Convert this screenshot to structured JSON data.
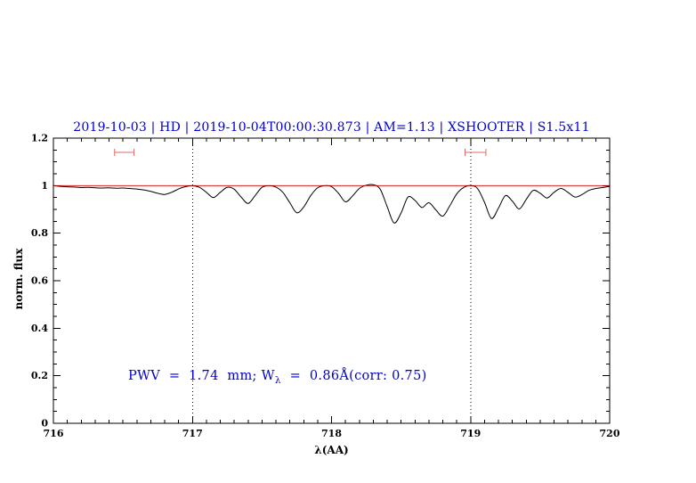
{
  "chart_data": {
    "type": "line",
    "title": "2019-10-03 | HD | 2019-10-04T00:00:30.873 | AM=1.13 | XSHOOTER | S1.5x11",
    "xlabel": "λ(AA)",
    "ylabel": "norm. flux",
    "xlim": [
      716,
      720
    ],
    "ylim": [
      0,
      1.2
    ],
    "xticks": [
      716,
      717,
      718,
      719,
      720
    ],
    "xtick_labels": [
      "716",
      "717",
      "718",
      "719",
      "720"
    ],
    "x_minor_step": 0.1,
    "yticks": [
      0,
      0.2,
      0.4,
      0.6,
      0.8,
      1,
      1.2
    ],
    "ytick_labels": [
      "0",
      "0.2",
      "0.4",
      "0.6",
      "0.8",
      "1",
      "1.2"
    ],
    "y_minor_step": 0.05,
    "grid": false,
    "reference_vlines": [
      717,
      719
    ],
    "continuum_level": 1.0,
    "range_markers": [
      {
        "x_start": 716.44,
        "x_end": 716.58,
        "y": 1.14
      },
      {
        "x_start": 718.96,
        "x_end": 719.11,
        "y": 1.14
      }
    ],
    "annotation": {
      "part1": "PWV  =  1.74  mm; W",
      "subscript": "λ",
      "part2": "  =  0.86Å(corr: 0.75)"
    },
    "series": [
      {
        "name": "observed-spectrum",
        "color": "#000000",
        "x": [
          716.0,
          716.05,
          716.1,
          716.15,
          716.2,
          716.25,
          716.3,
          716.35,
          716.4,
          716.45,
          716.5,
          716.55,
          716.6,
          716.65,
          716.7,
          716.75,
          716.8,
          716.85,
          716.9,
          716.95,
          717.0,
          717.05,
          717.1,
          717.15,
          717.2,
          717.25,
          717.3,
          717.35,
          717.4,
          717.45,
          717.5,
          717.55,
          717.6,
          717.65,
          717.7,
          717.75,
          717.8,
          717.85,
          717.9,
          717.95,
          718.0,
          718.05,
          718.1,
          718.15,
          718.2,
          718.25,
          718.3,
          718.35,
          718.4,
          718.45,
          718.5,
          718.55,
          718.6,
          718.65,
          718.7,
          718.75,
          718.8,
          718.85,
          718.9,
          718.95,
          719.0,
          719.05,
          719.1,
          719.15,
          719.2,
          719.25,
          719.3,
          719.35,
          719.4,
          719.45,
          719.5,
          719.55,
          719.6,
          719.65,
          719.7,
          719.75,
          719.8,
          719.85,
          719.9,
          719.95,
          720.0
        ],
        "y": [
          1.0,
          0.997,
          0.995,
          0.994,
          0.992,
          0.993,
          0.991,
          0.99,
          0.991,
          0.989,
          0.99,
          0.988,
          0.986,
          0.982,
          0.976,
          0.968,
          0.963,
          0.972,
          0.986,
          0.996,
          1.0,
          0.993,
          0.972,
          0.95,
          0.972,
          0.993,
          0.985,
          0.952,
          0.925,
          0.958,
          0.993,
          1.0,
          0.994,
          0.972,
          0.928,
          0.886,
          0.91,
          0.958,
          0.991,
          1.0,
          0.996,
          0.968,
          0.932,
          0.956,
          0.988,
          1.002,
          1.004,
          0.985,
          0.912,
          0.843,
          0.885,
          0.952,
          0.938,
          0.908,
          0.928,
          0.898,
          0.872,
          0.915,
          0.965,
          0.992,
          1.0,
          0.988,
          0.93,
          0.862,
          0.905,
          0.958,
          0.935,
          0.902,
          0.942,
          0.98,
          0.968,
          0.948,
          0.972,
          0.988,
          0.972,
          0.952,
          0.962,
          0.98,
          0.988,
          0.992,
          0.997
        ]
      }
    ]
  },
  "colors": {
    "title_text": "#0000cd",
    "annotation_text": "#0000cd",
    "continuum_line": "#cc0000",
    "range_marker": "#d96b6b",
    "vline": "#000000",
    "axis": "#000000",
    "background": "#ffffff"
  }
}
